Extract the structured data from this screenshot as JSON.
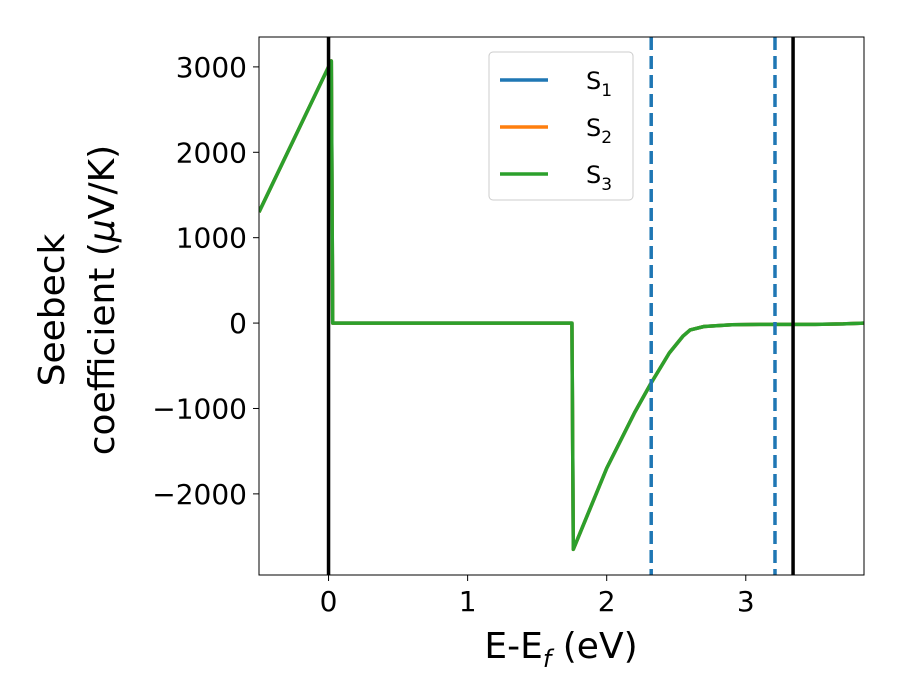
{
  "chart_data": {
    "type": "line",
    "xlabel": "E-E",
    "xlabel_sub": "f",
    "xlabel_unit": " (eV)",
    "ylabel_line1": "Seebeck",
    "ylabel_line2_pre": "coefficient  (",
    "ylabel_mu": "μ",
    "ylabel_line2_post": "V/K)",
    "xlim": [
      -0.5,
      3.85
    ],
    "ylim": [
      -2950,
      3350
    ],
    "xticks": [
      0,
      1,
      2,
      3
    ],
    "yticks": [
      -2000,
      -1000,
      0,
      1000,
      2000,
      3000
    ],
    "ytick_labels": [
      "−2000",
      "−1000",
      "0",
      "1000",
      "2000",
      "3000"
    ],
    "legend_position": "top-center",
    "series": [
      {
        "name": "S",
        "sub": "1",
        "color": "#1f77b4",
        "x": [
          -0.5,
          0.0,
          0.02,
          0.03,
          0.5,
          1.0,
          1.5,
          1.75,
          1.76,
          2.0,
          2.2,
          2.32,
          2.45,
          2.55,
          2.6,
          2.7,
          2.9,
          3.1,
          3.3,
          3.5,
          3.7,
          3.85
        ],
        "y": [
          1300,
          3000,
          3070,
          0,
          0,
          0,
          0,
          0,
          -2650,
          -1700,
          -1050,
          -700,
          -350,
          -150,
          -80,
          -40,
          -20,
          -15,
          -15,
          -15,
          -10,
          0
        ]
      },
      {
        "name": "S",
        "sub": "2",
        "color": "#ff7f0e",
        "x": [
          -0.5,
          0.0,
          0.02,
          0.03,
          0.5,
          1.0,
          1.5,
          1.75,
          1.76,
          2.0,
          2.2,
          2.32,
          2.45,
          2.55,
          2.6,
          2.7,
          2.9,
          3.1,
          3.3,
          3.5,
          3.7,
          3.85
        ],
        "y": [
          1300,
          3000,
          3070,
          0,
          0,
          0,
          0,
          0,
          -2650,
          -1700,
          -1050,
          -700,
          -350,
          -150,
          -80,
          -40,
          -20,
          -15,
          -15,
          -15,
          -10,
          0
        ]
      },
      {
        "name": "S",
        "sub": "3",
        "color": "#2ca02c",
        "x": [
          -0.5,
          0.0,
          0.02,
          0.03,
          0.5,
          1.0,
          1.5,
          1.75,
          1.76,
          2.0,
          2.2,
          2.32,
          2.45,
          2.55,
          2.6,
          2.7,
          2.9,
          3.1,
          3.3,
          3.5,
          3.7,
          3.85
        ],
        "y": [
          1300,
          3000,
          3070,
          0,
          0,
          0,
          0,
          0,
          -2650,
          -1700,
          -1050,
          -700,
          -350,
          -150,
          -80,
          -40,
          -20,
          -15,
          -15,
          -15,
          -10,
          0
        ]
      }
    ],
    "vlines": [
      {
        "x": 0.0,
        "style": "solid",
        "color": "#000000"
      },
      {
        "x": 3.34,
        "style": "solid",
        "color": "#000000"
      },
      {
        "x": 2.32,
        "style": "dashed",
        "color": "#1f77b4"
      },
      {
        "x": 3.21,
        "style": "dashed",
        "color": "#1f77b4"
      }
    ]
  }
}
